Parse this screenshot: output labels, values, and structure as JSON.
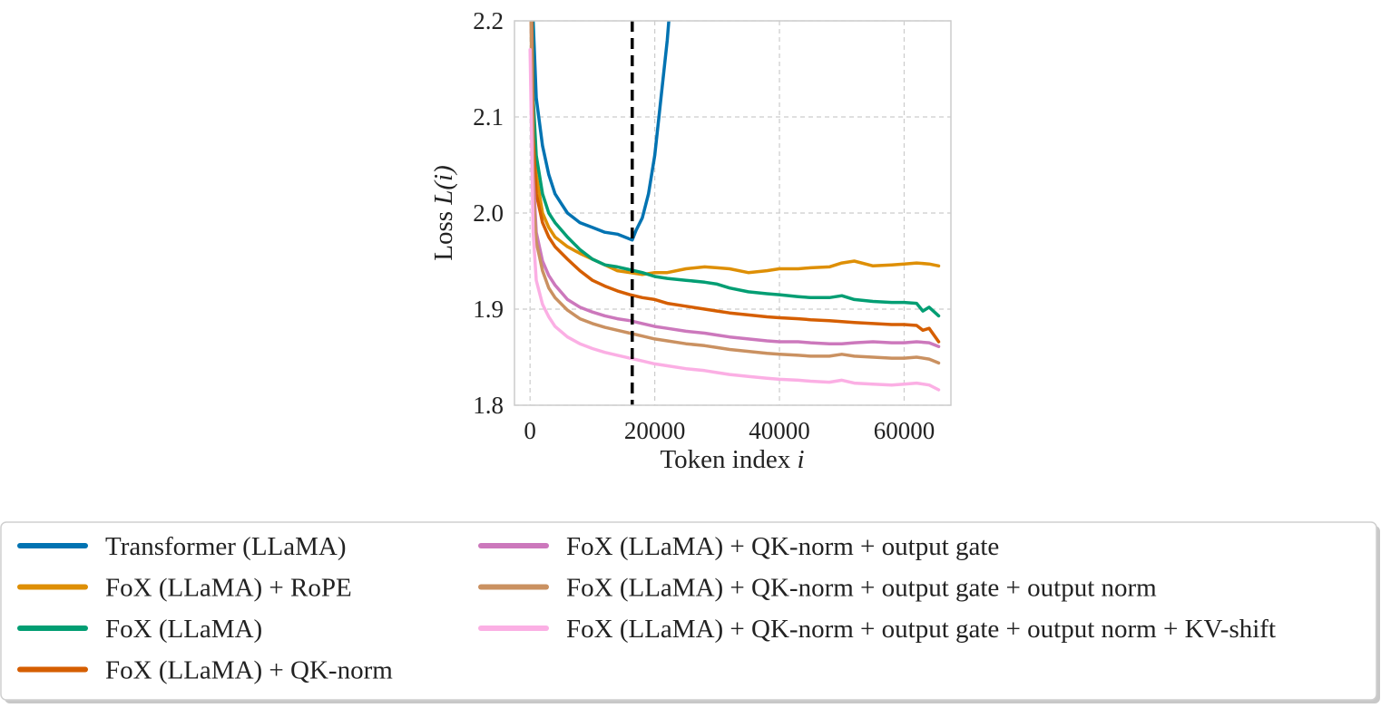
{
  "chart_data": {
    "type": "line",
    "title": "",
    "xlabel": "Token index",
    "xlabel_var": "i",
    "ylabel": "Loss",
    "ylabel_var": "L(i)",
    "xlim": [
      -2500,
      67500
    ],
    "ylim": [
      1.8,
      2.2
    ],
    "xticks": [
      0,
      20000,
      40000,
      60000
    ],
    "yticks": [
      1.8,
      1.9,
      2.0,
      2.1,
      2.2
    ],
    "grid": true,
    "legend_position": "below",
    "vline": {
      "x": 16384,
      "style": "dashed",
      "color": "#000000"
    },
    "series": [
      {
        "name": "Transformer (LLaMA)",
        "color": "#0173b2",
        "x": [
          0,
          500,
          1000,
          2000,
          3000,
          4000,
          5000,
          6000,
          8000,
          10000,
          12000,
          14000,
          16384,
          17000,
          18000,
          19000,
          20000,
          21000,
          22000,
          23000
        ],
        "y": [
          2.45,
          2.2,
          2.12,
          2.07,
          2.04,
          2.02,
          2.01,
          2.0,
          1.99,
          1.985,
          1.98,
          1.978,
          1.972,
          1.982,
          1.995,
          2.02,
          2.06,
          2.12,
          2.18,
          2.26
        ]
      },
      {
        "name": "FoX (LLaMA) + RoPE",
        "color": "#de8f05",
        "x": [
          0,
          500,
          1000,
          2000,
          3000,
          4000,
          6000,
          8000,
          10000,
          12000,
          14000,
          16000,
          18000,
          20000,
          22000,
          25000,
          28000,
          30000,
          32000,
          35000,
          38000,
          40000,
          43000,
          45000,
          48000,
          50000,
          52000,
          55000,
          58000,
          60000,
          62000,
          64000,
          65536
        ],
        "y": [
          2.35,
          2.1,
          2.04,
          2.0,
          1.985,
          1.975,
          1.965,
          1.958,
          1.952,
          1.946,
          1.94,
          1.938,
          1.936,
          1.938,
          1.938,
          1.942,
          1.944,
          1.943,
          1.942,
          1.938,
          1.94,
          1.942,
          1.942,
          1.943,
          1.944,
          1.948,
          1.95,
          1.945,
          1.946,
          1.947,
          1.948,
          1.947,
          1.945
        ]
      },
      {
        "name": "FoX (LLaMA)",
        "color": "#029e73",
        "x": [
          0,
          500,
          1000,
          2000,
          3000,
          4000,
          6000,
          8000,
          10000,
          12000,
          14000,
          16000,
          18000,
          20000,
          22000,
          25000,
          28000,
          30000,
          32000,
          35000,
          38000,
          40000,
          43000,
          45000,
          48000,
          50000,
          52000,
          55000,
          58000,
          60000,
          62000,
          63000,
          64000,
          65536
        ],
        "y": [
          2.4,
          2.12,
          2.06,
          2.02,
          2.0,
          1.99,
          1.975,
          1.962,
          1.952,
          1.946,
          1.944,
          1.941,
          1.938,
          1.934,
          1.932,
          1.93,
          1.928,
          1.926,
          1.922,
          1.918,
          1.916,
          1.915,
          1.913,
          1.912,
          1.912,
          1.914,
          1.91,
          1.908,
          1.907,
          1.907,
          1.906,
          1.898,
          1.902,
          1.893
        ]
      },
      {
        "name": "FoX (LLaMA) + QK-norm",
        "color": "#d55e00",
        "x": [
          0,
          500,
          1000,
          2000,
          3000,
          4000,
          6000,
          8000,
          10000,
          12000,
          14000,
          16000,
          18000,
          20000,
          22000,
          25000,
          28000,
          30000,
          32000,
          35000,
          38000,
          40000,
          43000,
          45000,
          48000,
          50000,
          52000,
          55000,
          58000,
          60000,
          62000,
          63000,
          64000,
          65536
        ],
        "y": [
          2.35,
          2.08,
          2.02,
          1.99,
          1.975,
          1.965,
          1.952,
          1.94,
          1.93,
          1.924,
          1.919,
          1.915,
          1.912,
          1.91,
          1.906,
          1.903,
          1.9,
          1.898,
          1.896,
          1.894,
          1.892,
          1.891,
          1.89,
          1.889,
          1.888,
          1.887,
          1.886,
          1.885,
          1.884,
          1.884,
          1.883,
          1.878,
          1.88,
          1.866
        ]
      },
      {
        "name": "FoX (LLaMA) + QK-norm + output gate",
        "color": "#cc78bc",
        "x": [
          0,
          500,
          1000,
          2000,
          3000,
          4000,
          6000,
          8000,
          10000,
          12000,
          14000,
          16000,
          18000,
          20000,
          22000,
          25000,
          28000,
          30000,
          32000,
          35000,
          38000,
          40000,
          43000,
          45000,
          48000,
          50000,
          52000,
          55000,
          58000,
          60000,
          62000,
          64000,
          65536
        ],
        "y": [
          2.3,
          2.04,
          1.98,
          1.95,
          1.935,
          1.925,
          1.91,
          1.902,
          1.897,
          1.893,
          1.89,
          1.888,
          1.885,
          1.882,
          1.88,
          1.877,
          1.875,
          1.873,
          1.871,
          1.869,
          1.867,
          1.866,
          1.866,
          1.865,
          1.864,
          1.864,
          1.865,
          1.866,
          1.865,
          1.865,
          1.866,
          1.865,
          1.861
        ]
      },
      {
        "name": "FoX (LLaMA) + QK-norm + output gate + output norm",
        "color": "#ca9161",
        "x": [
          0,
          500,
          1000,
          2000,
          3000,
          4000,
          6000,
          8000,
          10000,
          12000,
          14000,
          16000,
          18000,
          20000,
          22000,
          25000,
          28000,
          30000,
          32000,
          35000,
          38000,
          40000,
          43000,
          45000,
          48000,
          50000,
          52000,
          55000,
          58000,
          60000,
          62000,
          64000,
          65536
        ],
        "y": [
          2.28,
          2.02,
          1.97,
          1.94,
          1.922,
          1.912,
          1.899,
          1.89,
          1.885,
          1.881,
          1.878,
          1.875,
          1.872,
          1.869,
          1.867,
          1.864,
          1.862,
          1.86,
          1.858,
          1.856,
          1.854,
          1.853,
          1.852,
          1.851,
          1.851,
          1.853,
          1.851,
          1.85,
          1.849,
          1.849,
          1.85,
          1.848,
          1.844
        ]
      },
      {
        "name": "FoX (LLaMA) + QK-norm + output gate + output norm + KV-shift",
        "color": "#fbafe4",
        "x": [
          0,
          500,
          1000,
          2000,
          3000,
          4000,
          6000,
          8000,
          10000,
          12000,
          14000,
          16000,
          18000,
          20000,
          22000,
          25000,
          28000,
          30000,
          32000,
          35000,
          38000,
          40000,
          43000,
          45000,
          48000,
          50000,
          52000,
          55000,
          58000,
          60000,
          62000,
          64000,
          65536
        ],
        "y": [
          2.17,
          1.98,
          1.93,
          1.905,
          1.892,
          1.882,
          1.871,
          1.864,
          1.859,
          1.855,
          1.852,
          1.849,
          1.846,
          1.843,
          1.841,
          1.838,
          1.836,
          1.834,
          1.832,
          1.83,
          1.828,
          1.827,
          1.826,
          1.825,
          1.824,
          1.826,
          1.823,
          1.822,
          1.821,
          1.822,
          1.823,
          1.821,
          1.816
        ]
      }
    ]
  }
}
